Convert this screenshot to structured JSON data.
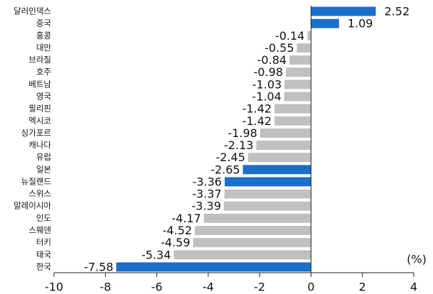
{
  "chart_data": {
    "type": "barh",
    "categories": [
      "달러인덱스",
      "중국",
      "홍콩",
      "대만",
      "브라질",
      "호주",
      "베트남",
      "영국",
      "필리핀",
      "멕시코",
      "싱가포르",
      "캐나다",
      "유럽",
      "일본",
      "뉴질랜드",
      "스위스",
      "말레이시아",
      "인도",
      "스웨덴",
      "터키",
      "태국",
      "한국"
    ],
    "values": [
      2.52,
      1.09,
      -0.14,
      -0.55,
      -0.84,
      -0.98,
      -1.03,
      -1.04,
      -1.42,
      -1.42,
      -1.98,
      -2.13,
      -2.45,
      -2.65,
      -3.36,
      -3.37,
      -3.39,
      -4.17,
      -4.52,
      -4.59,
      -5.34,
      -7.58
    ],
    "colors": [
      "#1a6fc9",
      "#1a6fc9",
      "#c0c0c0",
      "#c0c0c0",
      "#c0c0c0",
      "#c0c0c0",
      "#c0c0c0",
      "#c0c0c0",
      "#c0c0c0",
      "#c0c0c0",
      "#c0c0c0",
      "#c0c0c0",
      "#c0c0c0",
      "#1a6fc9",
      "#1a6fc9",
      "#c0c0c0",
      "#c0c0c0",
      "#c0c0c0",
      "#c0c0c0",
      "#c0c0c0",
      "#c0c0c0",
      "#1a6fc9"
    ],
    "xlim": [
      -10,
      4
    ],
    "xticks": [
      -10,
      -8,
      -6,
      -4,
      -2,
      0,
      2,
      4
    ],
    "unit_label": "(%)"
  }
}
